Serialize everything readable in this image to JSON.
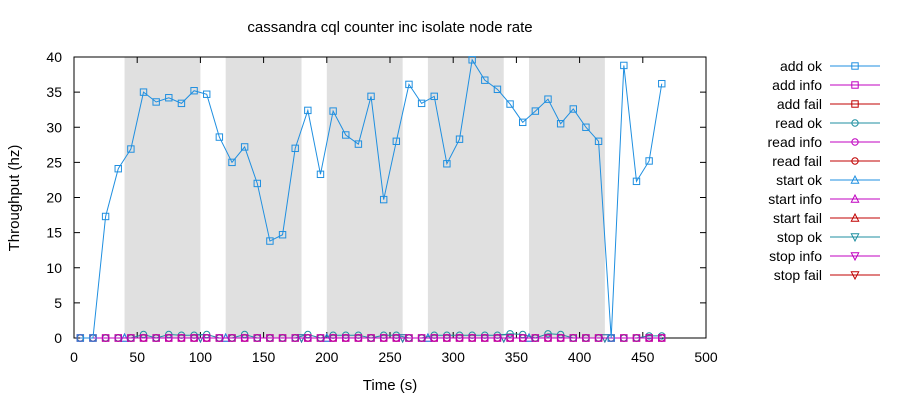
{
  "chart_data": {
    "type": "line",
    "title": "cassandra cql counter inc isolate node rate",
    "xlabel": "Time (s)",
    "ylabel": "Throughput (hz)",
    "xlim": [
      0,
      500
    ],
    "ylim": [
      0,
      40
    ],
    "xticks": [
      "0",
      "50",
      "100",
      "150",
      "200",
      "250",
      "300",
      "350",
      "400",
      "450",
      "500"
    ],
    "yticks": [
      "0",
      "5",
      "10",
      "15",
      "20",
      "25",
      "30",
      "35",
      "40"
    ],
    "grid": false,
    "legend_position": "right",
    "shaded_intervals": [
      [
        40,
        100
      ],
      [
        120,
        180
      ],
      [
        200,
        260
      ],
      [
        280,
        340
      ],
      [
        360,
        420
      ]
    ],
    "shade_color": "#e0e0e0",
    "series": [
      {
        "name": "add ok",
        "color": "#1f8fe0",
        "marker": "square",
        "x": [
          5,
          15,
          25,
          35,
          45,
          55,
          65,
          75,
          85,
          95,
          105,
          115,
          125,
          135,
          145,
          155,
          165,
          175,
          185,
          195,
          205,
          215,
          225,
          235,
          245,
          255,
          265,
          275,
          285,
          295,
          305,
          315,
          325,
          335,
          345,
          355,
          365,
          375,
          385,
          395,
          405,
          415,
          425,
          435,
          445,
          455,
          465
        ],
        "y": [
          0,
          0,
          17.3,
          24.1,
          26.9,
          35,
          33.6,
          34.2,
          33.4,
          35.2,
          34.7,
          28.6,
          25,
          27.2,
          22,
          13.8,
          14.7,
          27,
          32.4,
          23.3,
          32.3,
          28.9,
          27.6,
          34.4,
          19.7,
          28,
          36.1,
          33.4,
          34.4,
          24.8,
          28.3,
          39.6,
          36.7,
          35.4,
          33.3,
          30.7,
          32.3,
          34,
          30.5,
          32.6,
          30,
          28,
          0,
          38.8,
          22.3,
          25.2,
          36.2
        ]
      },
      {
        "name": "add info",
        "color": "#c000c0",
        "marker": "square",
        "x": [
          5,
          15,
          25,
          35,
          45,
          55,
          65,
          75,
          85,
          95,
          105,
          115,
          125,
          135,
          145,
          155,
          165,
          175,
          185,
          195,
          205,
          215,
          225,
          235,
          245,
          255,
          265,
          275,
          285,
          295,
          305,
          315,
          325,
          335,
          345,
          355,
          365,
          375,
          385,
          395,
          405,
          415,
          425,
          435,
          445,
          455,
          465
        ],
        "y": [
          0,
          0,
          0,
          0,
          0,
          0,
          0,
          0,
          0,
          0,
          0,
          0,
          0,
          0,
          0,
          0,
          0,
          0,
          0,
          0,
          0,
          0,
          0,
          0,
          0,
          0,
          0,
          0,
          0,
          0,
          0,
          0,
          0,
          0,
          0,
          0,
          0,
          0,
          0,
          0,
          0,
          0,
          0,
          0,
          0,
          0,
          0
        ]
      },
      {
        "name": "add fail",
        "color": "#c00000",
        "marker": "square",
        "x": [
          5,
          15,
          25,
          35,
          45,
          55,
          65,
          75,
          85,
          95,
          105,
          115,
          125,
          135,
          145,
          155,
          165,
          175,
          185,
          195,
          205,
          215,
          225,
          235,
          245,
          255,
          265,
          275,
          285,
          295,
          305,
          315,
          325,
          335,
          345,
          355,
          365,
          375,
          385,
          395,
          405,
          415,
          425,
          435,
          445,
          455,
          465
        ],
        "y": [
          0,
          0,
          0,
          0,
          0,
          0,
          0,
          0,
          0,
          0,
          0,
          0,
          0,
          0,
          0,
          0,
          0,
          0,
          0,
          0,
          0,
          0,
          0,
          0,
          0,
          0,
          0,
          0,
          0,
          0,
          0,
          0,
          0,
          0,
          0,
          0,
          0,
          0,
          0,
          0,
          0,
          0,
          0,
          0,
          0,
          0,
          0
        ]
      },
      {
        "name": "read ok",
        "color": "#1f8fa0",
        "marker": "circle",
        "x": [
          5,
          15,
          25,
          35,
          45,
          55,
          65,
          75,
          85,
          95,
          105,
          115,
          125,
          135,
          145,
          155,
          165,
          175,
          185,
          195,
          205,
          215,
          225,
          235,
          245,
          255,
          265,
          275,
          285,
          295,
          305,
          315,
          325,
          335,
          345,
          355,
          365,
          375,
          385,
          395,
          405,
          415,
          425,
          435,
          445,
          455,
          465
        ],
        "y": [
          0,
          0,
          0,
          0,
          0,
          0.5,
          0,
          0.5,
          0.4,
          0.4,
          0.5,
          0,
          0,
          0.5,
          0,
          0,
          0,
          0,
          0.5,
          0,
          0.4,
          0.4,
          0.4,
          0,
          0.4,
          0.4,
          0,
          0,
          0.4,
          0.4,
          0.4,
          0.4,
          0.4,
          0.4,
          0.6,
          0.5,
          0,
          0.6,
          0.5,
          0,
          0,
          0,
          0,
          0,
          0,
          0.3,
          0.3
        ]
      },
      {
        "name": "read info",
        "color": "#c000c0",
        "marker": "circle",
        "x": [
          5,
          15,
          25,
          35,
          45,
          55,
          65,
          75,
          85,
          95,
          105,
          115,
          125,
          135,
          145,
          155,
          165,
          175,
          185,
          195,
          205,
          215,
          225,
          235,
          245,
          255,
          265,
          275,
          285,
          295,
          305,
          315,
          325,
          335,
          345,
          355,
          365,
          375,
          385,
          395,
          405,
          415,
          425,
          435,
          445,
          455,
          465
        ],
        "y": [
          0,
          0,
          0,
          0,
          0,
          0,
          0,
          0,
          0,
          0,
          0,
          0,
          0,
          0,
          0,
          0,
          0,
          0,
          0,
          0,
          0,
          0,
          0,
          0,
          0,
          0,
          0,
          0,
          0,
          0,
          0,
          0,
          0,
          0,
          0,
          0,
          0,
          0,
          0,
          0,
          0,
          0,
          0,
          0,
          0,
          0,
          0
        ]
      },
      {
        "name": "read fail",
        "color": "#c00000",
        "marker": "circle",
        "x": [
          5,
          15,
          25,
          35,
          45,
          55,
          65,
          75,
          85,
          95,
          105,
          115,
          125,
          135,
          145,
          155,
          165,
          175,
          185,
          195,
          205,
          215,
          225,
          235,
          245,
          255,
          265,
          275,
          285,
          295,
          305,
          315,
          325,
          335,
          345,
          355,
          365,
          375,
          385,
          395,
          405,
          415,
          425,
          435,
          445,
          455,
          465
        ],
        "y": [
          0,
          0,
          0,
          0,
          0,
          0,
          0,
          0,
          0,
          0,
          0,
          0,
          0,
          0,
          0,
          0,
          0,
          0,
          0,
          0,
          0,
          0,
          0,
          0,
          0,
          0,
          0,
          0,
          0,
          0,
          0,
          0,
          0,
          0,
          0,
          0,
          0,
          0,
          0,
          0,
          0,
          0,
          0,
          0,
          0,
          0,
          0
        ]
      },
      {
        "name": "start ok",
        "color": "#1f8fe0",
        "marker": "triangle-up",
        "x": [
          40,
          120,
          200,
          280,
          360
        ],
        "y": [
          0,
          0,
          0,
          0,
          0
        ]
      },
      {
        "name": "start info",
        "color": "#c000c0",
        "marker": "triangle-up",
        "x": [
          40,
          120,
          200,
          280,
          360
        ],
        "y": [
          0,
          0,
          0,
          0,
          0
        ]
      },
      {
        "name": "start fail",
        "color": "#c00000",
        "marker": "triangle-up",
        "x": [],
        "y": []
      },
      {
        "name": "stop ok",
        "color": "#1f8fa0",
        "marker": "triangle-down",
        "x": [
          100,
          180,
          260,
          340,
          420
        ],
        "y": [
          0,
          0,
          0,
          0,
          0
        ]
      },
      {
        "name": "stop info",
        "color": "#c000c0",
        "marker": "triangle-down",
        "x": [
          100,
          180,
          260,
          340,
          420
        ],
        "y": [
          0,
          0,
          0,
          0,
          0
        ]
      },
      {
        "name": "stop fail",
        "color": "#c00000",
        "marker": "triangle-down",
        "x": [],
        "y": []
      }
    ]
  }
}
